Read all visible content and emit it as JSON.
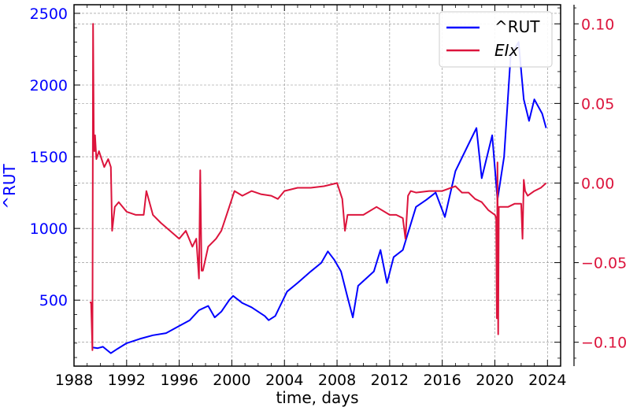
{
  "chart_data": {
    "type": "line",
    "xlabel": "time, days",
    "ylabel": "^RUT",
    "xlim": [
      1988.0,
      2025.0
    ],
    "x_ticks": [
      1988,
      1992,
      1996,
      2000,
      2004,
      2008,
      2012,
      2016,
      2020,
      2024
    ],
    "ylim_left": [
      40,
      2560
    ],
    "y_ticks_left": [
      500,
      1000,
      1500,
      2000,
      2500
    ],
    "ylim_right": [
      -0.115,
      0.112
    ],
    "y_ticks_right": [
      -0.1,
      -0.05,
      0.0,
      0.05,
      0.1
    ],
    "y_tick_labels_right": [
      "−0.10",
      "−0.05",
      "0.00",
      "0.05",
      "0.10"
    ],
    "grid": true,
    "legend_position": "top-right",
    "series": [
      {
        "name": "^RUT",
        "axis": "left",
        "color": "#0000ff",
        "x": [
          1989.4,
          1989.8,
          1990.2,
          1990.8,
          1991.3,
          1992.0,
          1993.0,
          1994.0,
          1995.0,
          1996.0,
          1996.8,
          1997.5,
          1998.2,
          1998.7,
          1999.2,
          1999.8,
          2000.1,
          2000.8,
          2001.5,
          2002.5,
          2002.8,
          2003.3,
          2004.2,
          2005.0,
          2006.0,
          2006.8,
          2007.3,
          2007.8,
          2008.3,
          2008.8,
          2009.2,
          2009.6,
          2010.2,
          2010.8,
          2011.3,
          2011.8,
          2012.3,
          2013.0,
          2014.0,
          2014.8,
          2015.5,
          2016.2,
          2017.0,
          2017.8,
          2018.6,
          2019.0,
          2019.8,
          2020.2,
          2020.7,
          2021.2,
          2021.8,
          2022.2,
          2022.6,
          2023.0,
          2023.6,
          2023.9
        ],
        "y": [
          170,
          165,
          175,
          130,
          160,
          200,
          230,
          255,
          270,
          320,
          360,
          430,
          460,
          380,
          420,
          500,
          530,
          480,
          450,
          390,
          360,
          390,
          560,
          620,
          700,
          760,
          840,
          780,
          700,
          520,
          380,
          600,
          650,
          700,
          850,
          620,
          800,
          850,
          1150,
          1200,
          1250,
          1080,
          1400,
          1550,
          1700,
          1350,
          1650,
          1200,
          1500,
          2200,
          2300,
          1900,
          1750,
          1900,
          1800,
          1700
        ]
      },
      {
        "name": "EIx",
        "axis": "right",
        "color": "#dc143c",
        "x": [
          1989.2,
          1989.3,
          1989.4,
          1989.45,
          1989.5,
          1989.55,
          1989.6,
          1989.7,
          1989.9,
          1990.3,
          1990.6,
          1990.8,
          1990.9,
          1991.1,
          1991.4,
          1992.0,
          1992.7,
          1993.3,
          1993.5,
          1994.0,
          1994.6,
          1995.3,
          1996.0,
          1996.5,
          1997.0,
          1997.3,
          1997.5,
          1997.6,
          1997.7,
          1997.8,
          1998.2,
          1998.8,
          1999.2,
          1999.6,
          2000.2,
          2000.8,
          2001.5,
          2002.2,
          2003.0,
          2003.5,
          2004.0,
          2005.0,
          2006.0,
          2007.0,
          2008.0,
          2008.4,
          2008.6,
          2008.8,
          2009.0,
          2009.3,
          2010.0,
          2011.0,
          2012.0,
          2012.5,
          2013.0,
          2013.2,
          2013.4,
          2013.6,
          2014.0,
          2015.0,
          2016.0,
          2017.0,
          2017.5,
          2018.0,
          2018.5,
          2019.0,
          2019.5,
          2020.0,
          2020.1,
          2020.15,
          2020.2,
          2020.25,
          2020.3,
          2020.6,
          2021.0,
          2021.5,
          2022.0,
          2022.1,
          2022.2,
          2022.3,
          2022.5,
          2023.0,
          2023.5,
          2023.9
        ],
        "y": [
          -0.075,
          -0.075,
          -0.105,
          0.1,
          0.03,
          0.02,
          0.03,
          0.015,
          0.02,
          0.01,
          0.015,
          0.01,
          -0.03,
          -0.015,
          -0.012,
          -0.018,
          -0.02,
          -0.02,
          -0.005,
          -0.02,
          -0.025,
          -0.03,
          -0.035,
          -0.03,
          -0.04,
          -0.035,
          -0.06,
          0.008,
          -0.055,
          -0.055,
          -0.04,
          -0.035,
          -0.03,
          -0.02,
          -0.005,
          -0.008,
          -0.005,
          -0.007,
          -0.008,
          -0.01,
          -0.005,
          -0.003,
          -0.003,
          -0.002,
          0.0,
          -0.01,
          -0.03,
          -0.02,
          -0.02,
          -0.02,
          -0.02,
          -0.015,
          -0.02,
          -0.02,
          -0.022,
          -0.035,
          -0.008,
          -0.005,
          -0.006,
          -0.005,
          -0.005,
          -0.002,
          -0.006,
          -0.006,
          -0.01,
          -0.012,
          -0.017,
          -0.02,
          -0.022,
          -0.085,
          0.013,
          -0.095,
          -0.015,
          -0.015,
          -0.015,
          -0.013,
          -0.013,
          -0.035,
          0.002,
          -0.005,
          -0.008,
          -0.005,
          -0.003,
          0.0
        ]
      }
    ]
  }
}
